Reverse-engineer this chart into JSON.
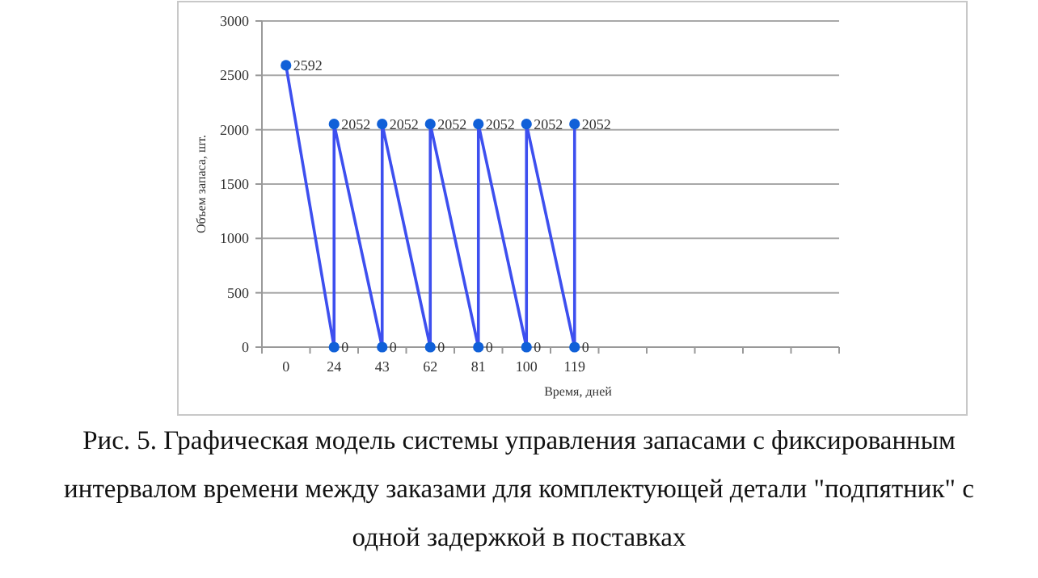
{
  "chart_data": {
    "type": "line",
    "xlabel": "Время, дней",
    "ylabel": "Объем запаса, шт.",
    "categories": [
      "0",
      "24",
      "43",
      "62",
      "81",
      "100",
      "119",
      null,
      null,
      null,
      null,
      null
    ],
    "series": [
      {
        "color": "#3d4fef",
        "marker": "circle",
        "x": [
          "0",
          "24",
          "24",
          "43",
          "43",
          "62",
          "62",
          "81",
          "81",
          "100",
          "100",
          "119",
          "119"
        ],
        "values": [
          2592,
          0,
          2052,
          0,
          2052,
          0,
          2052,
          0,
          2052,
          0,
          2052,
          0,
          2052
        ]
      }
    ],
    "ylim": [
      0,
      3000
    ],
    "yticks": [
      0,
      500,
      1000,
      1500,
      2000,
      2500,
      3000
    ],
    "grid": "y",
    "data_labels": true,
    "annotations": [
      "Рис. 5. Графическая модель системы управления запасами с фиксированным интервалом времени между заказами для комплектующей детали \"подпятник\" с одной задержкой в поставках"
    ]
  }
}
